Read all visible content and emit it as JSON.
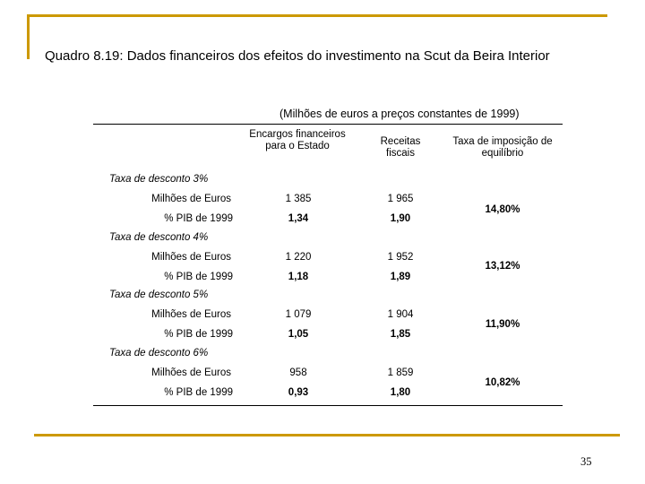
{
  "page": {
    "title": "Quadro 8.19: Dados financeiros dos efeitos do investimento na Scut da Beira Interior",
    "subtitle": "(Milhões de euros a preços constantes de 1999)",
    "page_number": "35",
    "accent_color": "#cc9900"
  },
  "table": {
    "headers": {
      "encargos": "Encargos financeiros para o Estado",
      "receitas": "Receitas fiscais",
      "taxa": "Taxa de imposição de equilíbrio"
    },
    "sections": [
      {
        "label": "Taxa de desconto 3%",
        "row1_label": "Milhões de Euros",
        "row1_encargos": "1 385",
        "row1_receitas": "1 965",
        "row2_label": "% PIB de 1999",
        "row2_encargos": "1,34",
        "row2_receitas": "1,90",
        "taxa": "14,80%"
      },
      {
        "label": "Taxa de desconto 4%",
        "row1_label": "Milhões de Euros",
        "row1_encargos": "1 220",
        "row1_receitas": "1 952",
        "row2_label": "% PIB de 1999",
        "row2_encargos": "1,18",
        "row2_receitas": "1,89",
        "taxa": "13,12%"
      },
      {
        "label": "Taxa de desconto 5%",
        "row1_label": "Milhões de Euros",
        "row1_encargos": "1 079",
        "row1_receitas": "1 904",
        "row2_label": "% PIB de 1999",
        "row2_encargos": "1,05",
        "row2_receitas": "1,85",
        "taxa": "11,90%"
      },
      {
        "label": "Taxa de desconto 6%",
        "row1_label": "Milhões de Euros",
        "row1_encargos": "958",
        "row1_receitas": "1 859",
        "row2_label": "% PIB de 1999",
        "row2_encargos": "0,93",
        "row2_receitas": "1,80",
        "taxa": "10,82%"
      }
    ]
  }
}
